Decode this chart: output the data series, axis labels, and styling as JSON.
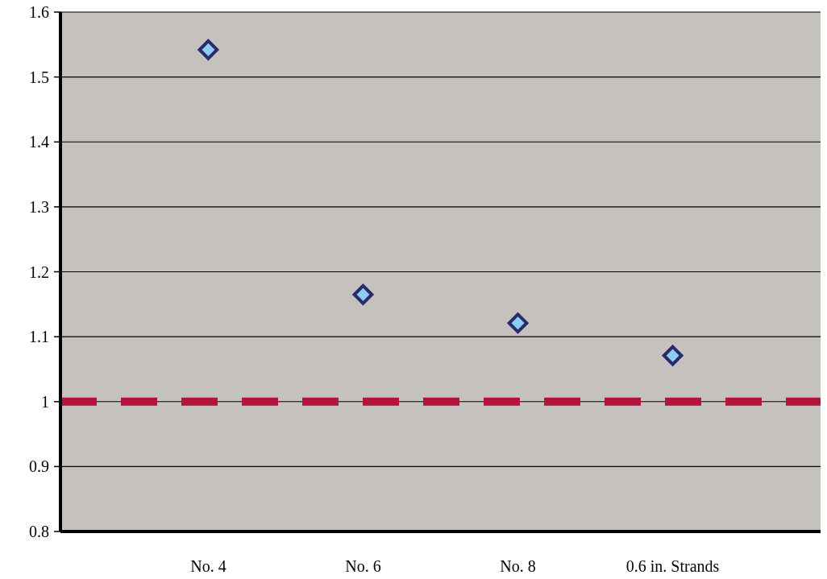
{
  "chart_data": {
    "type": "scatter",
    "categories": [
      "No. 4",
      "No. 6",
      "No. 8",
      "0.6 in. Strands"
    ],
    "series": [
      {
        "color": "#8ecdf0",
        "values": [
          1.542,
          1.165,
          1.121,
          1.071
        ]
      }
    ],
    "ylim": [
      0.8,
      1.6
    ],
    "yticks": [
      0.8,
      0.9,
      1,
      1.1,
      1.2,
      1.3,
      1.4,
      1.5,
      1.6
    ],
    "grid": "y",
    "marker": "diamond",
    "ref_lines": [
      {
        "axis": "y",
        "value": 1,
        "color": "#b5123a",
        "line_style": "dashed"
      }
    ]
  }
}
